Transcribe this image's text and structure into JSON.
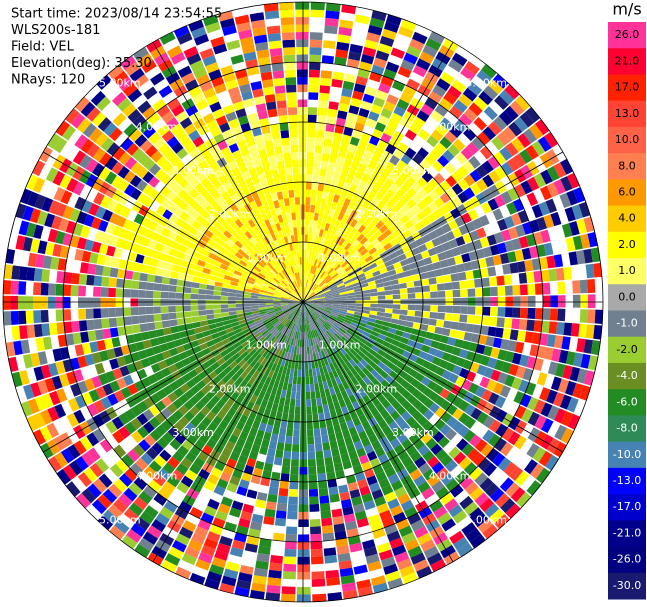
{
  "info": {
    "lines": [
      "Start time: 2023/08/14 23:54:55",
      "WLS200s-181",
      "Field: VEL",
      "Elevation(deg): 35.30",
      "NRays: 120"
    ]
  },
  "rings": {
    "labels": [
      "1.00km",
      "2.00km",
      "3.00km",
      "4.00km",
      "5.00km"
    ]
  },
  "colorbar": {
    "unit": "m/s",
    "ticks": [
      "26.0",
      "21.0",
      "17.0",
      "13.0",
      "10.0",
      "8.0",
      "6.0",
      "4.0",
      "2.0",
      "1.0",
      "0.0",
      "-1.0",
      "-2.0",
      "-4.0",
      "-6.0",
      "-8.0",
      "-10.0",
      "-13.0",
      "-17.0",
      "-21.0",
      "-26.0",
      "-30.0"
    ],
    "colors": [
      "#ff3399",
      "#ff0033",
      "#ff2200",
      "#ff4433",
      "#ff6347",
      "#ff7f50",
      "#ff9900",
      "#ffcc00",
      "#ffff00",
      "#ffff66",
      "#a9a9a9",
      "#708090",
      "#9acd32",
      "#6b8e23",
      "#228b22",
      "#2e8b57",
      "#4682b4",
      "#0000ff",
      "#0000cd",
      "#00008b",
      "#000080",
      "#191970"
    ]
  }
}
